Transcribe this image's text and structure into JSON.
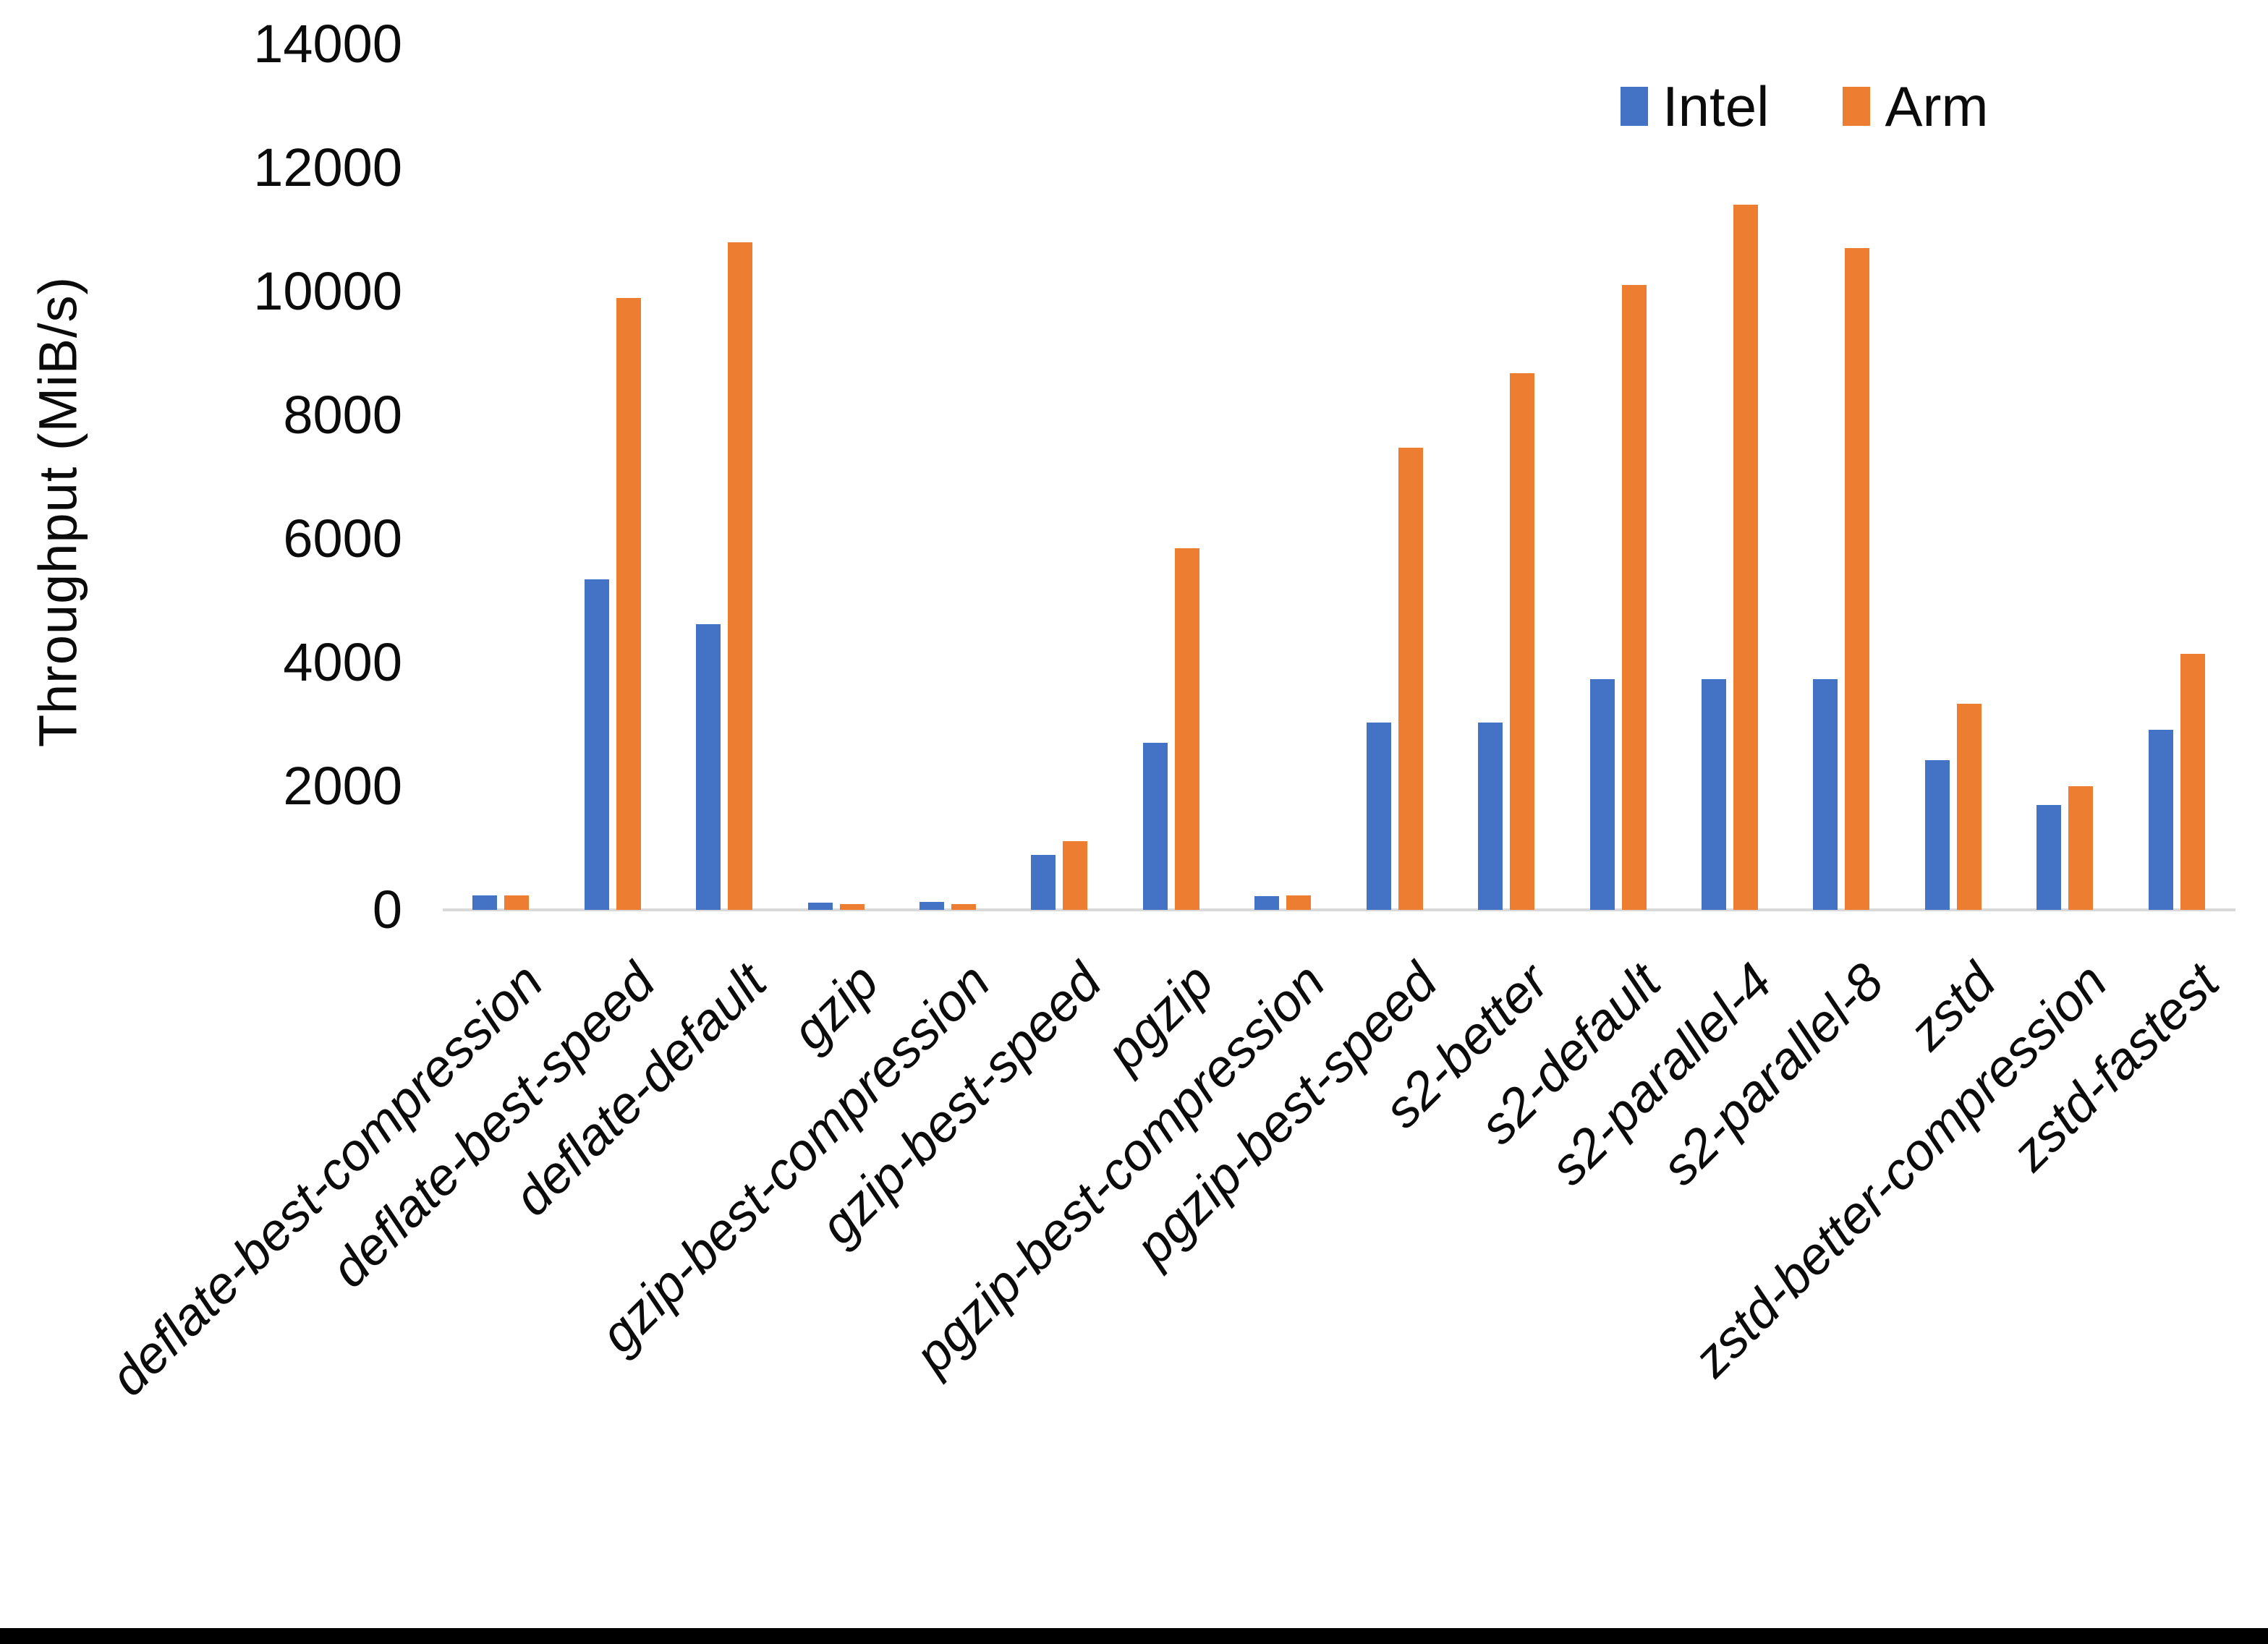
{
  "legend": {
    "intel_label": "Intel",
    "arm_label": "Arm"
  },
  "colors": {
    "intel": "#4472C4",
    "arm": "#ED7D31",
    "axis_line": "#D9D9D9",
    "text": "#0B0B0B",
    "bottom_bar": "#000000"
  },
  "chart_data": {
    "type": "bar",
    "title": "",
    "xlabel": "",
    "ylabel": "Throughput (MiB/s)",
    "ylim": [
      0,
      14000
    ],
    "yticks": [
      0,
      2000,
      4000,
      6000,
      8000,
      10000,
      12000,
      14000
    ],
    "grid": false,
    "legend_position": "top-right",
    "categories": [
      "deflate-best-compression",
      "deflate-best-speed",
      "deflate-default",
      "gzip",
      "gzip-best-compression",
      "gzip-best-speed",
      "pgzip",
      "pgzip-best-compression",
      "pgzip-best-speed",
      "s2-better",
      "s2-default",
      "s2-parallel-4",
      "s2-parallel-8",
      "zstd",
      "zstd-better-compression",
      "zstd-fastest"
    ],
    "series": [
      {
        "name": "Intel",
        "color": "#4472C4",
        "values": [
          230,
          5340,
          4620,
          120,
          125,
          890,
          2700,
          220,
          3030,
          3030,
          3730,
          3730,
          3730,
          2420,
          1700,
          2910
        ]
      },
      {
        "name": "Arm",
        "color": "#ED7D31",
        "values": [
          230,
          9900,
          10800,
          90,
          95,
          1110,
          5850,
          235,
          7470,
          8680,
          10100,
          11400,
          10700,
          3330,
          2000,
          4140
        ]
      }
    ]
  }
}
